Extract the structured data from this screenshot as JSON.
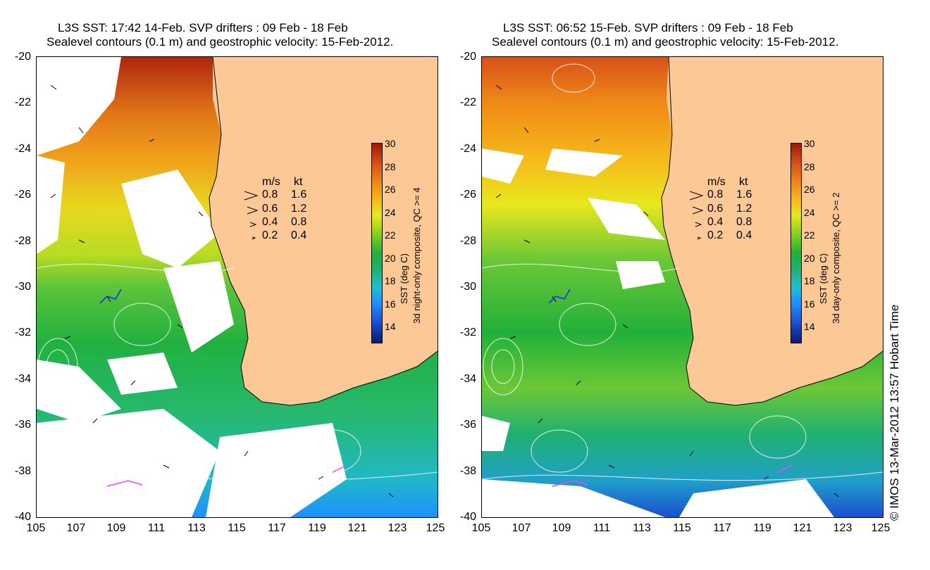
{
  "panels": [
    {
      "title_line1": "L3S SST: 17:42 14-Feb. SVP drifters : 09 Feb - 18 Feb",
      "title_line2": "Sealevel contours (0.1 m) and geostrophic velocity: 15-Feb-2012.",
      "colorbar_label_1": "SST (deg C)",
      "colorbar_label_2": "3d night-only composite, QC >= 4"
    },
    {
      "title_line1": "L3S SST: 06:52 15-Feb. SVP drifters : 09 Feb - 18 Feb",
      "title_line2": "Sealevel contours (0.1 m) and geostrophic velocity: 15-Feb-2012.",
      "colorbar_label_1": "SST (deg C)",
      "colorbar_label_2": "3d day-only composite, QC >= 2"
    }
  ],
  "axes": {
    "y_ticks": [
      "-20",
      "-22",
      "-24",
      "-26",
      "-28",
      "-30",
      "-32",
      "-34",
      "-36",
      "-38",
      "-40"
    ],
    "x_ticks": [
      "105",
      "107",
      "109",
      "111",
      "113",
      "115",
      "117",
      "119",
      "121",
      "123",
      "125"
    ]
  },
  "velocity_legend": {
    "header_ms": "m/s",
    "header_kt": "kt",
    "rows": [
      {
        "ms": "0.8",
        "kt": "1.6"
      },
      {
        "ms": "0.6",
        "kt": "1.2"
      },
      {
        "ms": "0.4",
        "kt": "0.8"
      },
      {
        "ms": "0.2",
        "kt": "0.4"
      }
    ]
  },
  "colorbar_ticks": [
    "30",
    "28",
    "26",
    "24",
    "22",
    "20",
    "18",
    "16",
    "14"
  ],
  "credit": "© IMOS 13-Mar-2012 13:57 Hobart Time",
  "colors": {
    "land": "#fcc896",
    "warm_north": "#b02010",
    "ocean_mid": "#e8d81e",
    "ocean_south": "#22b03a",
    "cold": "#1e90ff"
  }
}
